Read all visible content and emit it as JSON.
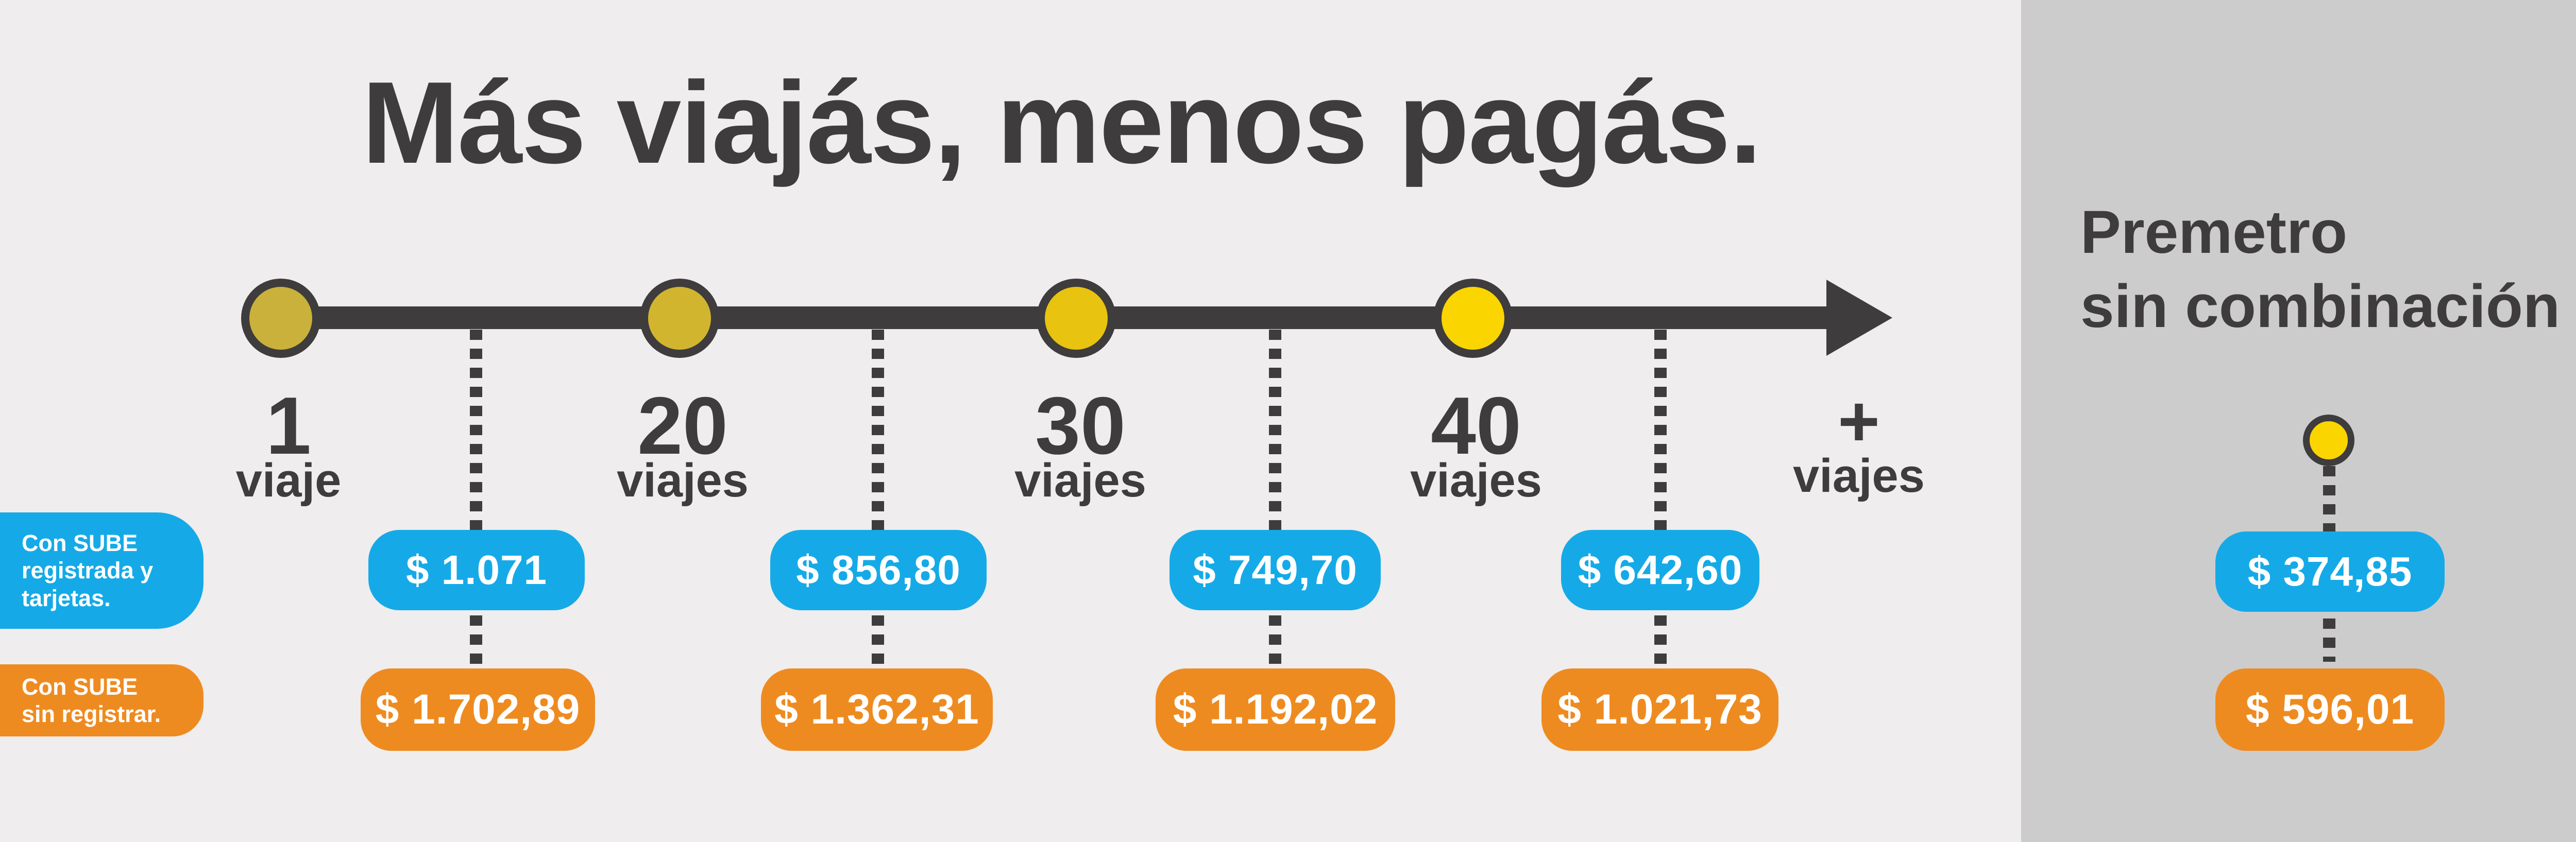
{
  "title": "Más viajás, menos pagás.",
  "timeline": {
    "nodes": [
      {
        "number": "1",
        "word": "viaje",
        "color": "#cab13b"
      },
      {
        "number": "20",
        "word": "viajes",
        "color": "#d2b52e"
      },
      {
        "number": "30",
        "word": "viajes",
        "color": "#e8c30f"
      },
      {
        "number": "40",
        "word": "viajes",
        "color": "#fbd500"
      }
    ],
    "plus": {
      "symbol": "+",
      "word": "viajes"
    }
  },
  "legend": {
    "registered": "Con SUBE\nregistrada y\ntarjetas.",
    "unregistered": "Con SUBE\nsin registrar."
  },
  "fares": {
    "registered": [
      "$ 1.071",
      "$ 856,80",
      "$ 749,70",
      "$ 642,60"
    ],
    "unregistered": [
      "$ 1.702,89",
      "$ 1.362,31",
      "$ 1.192,02",
      "$ 1.021,73"
    ]
  },
  "premetro": {
    "title": "Premetro\nsin combinación",
    "registered": "$ 374,85",
    "unregistered": "$ 596,01"
  },
  "colors": {
    "background": "#efeded",
    "panel": "#cdcccd",
    "dark": "#3e3c3d",
    "blue": "#15aae7",
    "orange": "#ee8b20",
    "yellow": "#fbd500"
  }
}
